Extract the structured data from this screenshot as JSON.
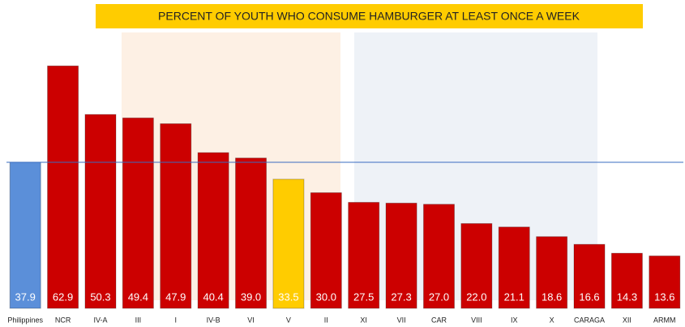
{
  "chart_data": {
    "type": "bar",
    "title": "PERCENT OF YOUTH WHO CONSUME HAMBURGER AT LEAST ONCE A WEEK",
    "categories": [
      "Philippines",
      "NCR",
      "IV-A",
      "III",
      "I",
      "IV-B",
      "VI",
      "V",
      "II",
      "XI",
      "VII",
      "CAR",
      "VIII",
      "IX",
      "X",
      "CARAGA",
      "XII",
      "ARMM"
    ],
    "values": [
      37.9,
      62.9,
      50.3,
      49.4,
      47.9,
      40.4,
      39.0,
      33.5,
      30.0,
      27.5,
      27.3,
      27.0,
      22.0,
      21.1,
      18.6,
      16.6,
      14.3,
      13.6
    ],
    "value_labels": [
      "37.9",
      "62.9",
      "50.3",
      "49.4",
      "47.9",
      "40.4",
      "39.0",
      "33.5",
      "30.0",
      "27.5",
      "27.3",
      "27.0",
      "22.0",
      "21.1",
      "18.6",
      "16.6",
      "14.3",
      "13.6"
    ],
    "colors": [
      "#5b8fd9",
      "#cc0000",
      "#cc0000",
      "#cc0000",
      "#cc0000",
      "#cc0000",
      "#cc0000",
      "#ffcc00",
      "#cc0000",
      "#cc0000",
      "#cc0000",
      "#cc0000",
      "#cc0000",
      "#cc0000",
      "#cc0000",
      "#cc0000",
      "#cc0000",
      "#cc0000"
    ],
    "ylim": [
      0,
      80
    ]
  }
}
